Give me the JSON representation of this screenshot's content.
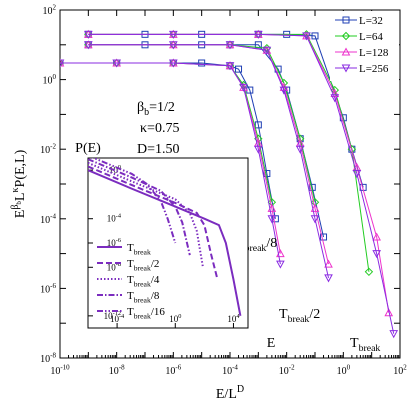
{
  "chart_data": [
    {
      "type": "line",
      "xlabel": "E/L^D",
      "ylabel": "E^{βb} L^κ P(E,L)",
      "xscale": "log",
      "yscale": "log",
      "xlim": [
        1e-10,
        100
      ],
      "ylim": [
        1e-08,
        100
      ],
      "x_ticks": [
        "10^-10",
        "10^-8",
        "10^-6",
        "10^-4",
        "10^-2",
        "10^0",
        "10^2"
      ],
      "y_ticks": [
        "10^-8",
        "10^-6",
        "10^-4",
        "10^-2",
        "10^0",
        "10^2"
      ],
      "legend_position": "top-right",
      "annotations": {
        "beta": "βb=1/2",
        "kappa": "κ=0.75",
        "D": "D=1.50",
        "t1": "Tbreak/8",
        "t2": "Tbreak/2",
        "t3": "Tbreak"
      },
      "series": [
        {
          "name": "L=32",
          "color": "#1f3fb4",
          "marker": "square",
          "groups": [
            {
              "x": [
                1e-10,
                1e-08,
                1e-06,
                1e-05,
                0.0001,
                0.0002,
                0.0005,
                0.001,
                0.002,
                0.004
              ],
              "y": [
                3,
                3,
                3,
                3,
                2.5,
                2,
                0.5,
                0.05,
                0.002,
                0.0001
              ]
            },
            {
              "x": [
                1e-09,
                1e-07,
                1e-05,
                0.0001,
                0.001,
                0.005,
                0.01,
                0.03,
                0.08,
                0.2
              ],
              "y": [
                10,
                10,
                10,
                10,
                10,
                2,
                0.5,
                0.02,
                0.0008,
                3e-05
              ]
            },
            {
              "x": [
                1e-09,
                1e-07,
                1e-05,
                0.001,
                0.01,
                0.1,
                1,
                2,
                5
              ],
              "y": [
                20,
                20,
                20,
                20,
                20,
                18,
                0.08,
                0.01,
                0.0008
              ]
            }
          ]
        },
        {
          "name": "L=64",
          "color": "#22cc22",
          "marker": "diamond",
          "groups": [
            {
              "x": [
                1e-10,
                1e-08,
                1e-06,
                0.0001,
                0.0003,
                0.001,
                0.003
              ],
              "y": [
                3,
                3,
                3,
                2.5,
                0.7,
                0.02,
                0.0003
              ]
            },
            {
              "x": [
                1e-09,
                1e-06,
                0.0001,
                0.002,
                0.008,
                0.03,
                0.1
              ],
              "y": [
                10,
                10,
                10,
                8,
                0.8,
                0.02,
                0.0003
              ]
            },
            {
              "x": [
                1e-09,
                1e-06,
                0.001,
                0.05,
                0.5,
                2,
                8
              ],
              "y": [
                20,
                20,
                20,
                20,
                0.5,
                0.01,
                3e-06
              ]
            }
          ]
        },
        {
          "name": "L=128",
          "color": "#ee33cc",
          "marker": "triangle-up",
          "groups": [
            {
              "x": [
                1e-10,
                1e-08,
                1e-06,
                0.0001,
                0.0003,
                0.001,
                0.003,
                0.006
              ],
              "y": [
                3,
                3,
                3,
                2.5,
                0.6,
                0.015,
                0.0002,
                1e-05
              ]
            },
            {
              "x": [
                1e-09,
                1e-06,
                0.0001,
                0.002,
                0.008,
                0.03,
                0.1,
                0.3
              ],
              "y": [
                10,
                10,
                10,
                7,
                0.6,
                0.015,
                0.0002,
                5e-06
              ]
            },
            {
              "x": [
                1e-09,
                1e-06,
                0.001,
                0.05,
                0.5,
                3,
                15,
                40
              ],
              "y": [
                20,
                20,
                20,
                18,
                0.4,
                0.003,
                3e-05,
                2e-07
              ]
            }
          ]
        },
        {
          "name": "L=256",
          "color": "#8a2be2",
          "marker": "triangle-down",
          "groups": [
            {
              "x": [
                1e-10,
                1e-08,
                1e-06,
                0.0001,
                0.0003,
                0.001,
                0.003,
                0.006
              ],
              "y": [
                3,
                3,
                3,
                2.5,
                0.6,
                0.01,
                0.0001,
                5e-06
              ]
            },
            {
              "x": [
                1e-09,
                1e-06,
                0.0001,
                0.002,
                0.008,
                0.03,
                0.1,
                0.3
              ],
              "y": [
                10,
                10,
                10,
                7,
                0.5,
                0.01,
                0.0001,
                2e-06
              ]
            },
            {
              "x": [
                1e-09,
                1e-06,
                0.001,
                0.05,
                0.5,
                3,
                15,
                60
              ],
              "y": [
                20,
                20,
                20,
                18,
                0.3,
                0.002,
                1e-05,
                5e-08
              ]
            }
          ]
        }
      ]
    },
    {
      "type": "line",
      "xlabel": "E",
      "ylabel": "P(E)",
      "xscale": "log",
      "yscale": "log",
      "xlim": [
        1e-06,
        100000.0
      ],
      "ylim": [
        1e-13,
        10
      ],
      "x_ticks": [
        "10^-4",
        "10^0",
        "10^4"
      ],
      "y_ticks": [
        "10^0",
        "10^-4",
        "10^-6",
        "10^-8",
        "10^-12"
      ],
      "legend_position": "bottom-left",
      "series": [
        {
          "name": "Tbreak",
          "dash": "solid",
          "x": [
            1e-06,
            0.001,
            1,
            100,
            1000,
            3000,
            10000,
            30000
          ],
          "y": [
            1,
            0.03,
            0.001,
            0.0001,
            3e-05,
            1e-06,
            1e-09,
            1e-12
          ]
        },
        {
          "name": "Tbreak/2",
          "dash": "dashed",
          "x": [
            1e-06,
            0.001,
            1,
            30,
            100,
            300,
            800
          ],
          "y": [
            2,
            0.06,
            0.002,
            0.0003,
            3e-05,
            1e-07,
            1e-09
          ]
        },
        {
          "name": "Tbreak/4",
          "dash": "dotted",
          "x": [
            1e-06,
            0.001,
            1,
            10,
            30,
            80
          ],
          "y": [
            4,
            0.12,
            0.004,
            0.0003,
            1e-05,
            1e-08
          ]
        },
        {
          "name": "Tbreak/8",
          "dash": "dashdot",
          "x": [
            1e-06,
            0.001,
            0.1,
            1,
            3,
            10
          ],
          "y": [
            8,
            0.25,
            0.02,
            0.001,
            5e-05,
            1e-07
          ]
        },
        {
          "name": "Tbreak/16",
          "dash": "dashdotdot",
          "x": [
            1e-06,
            0.001,
            0.01,
            0.1,
            0.3,
            1
          ],
          "y": [
            16,
            0.5,
            0.08,
            0.003,
            0.0001,
            1e-06
          ]
        }
      ]
    }
  ]
}
